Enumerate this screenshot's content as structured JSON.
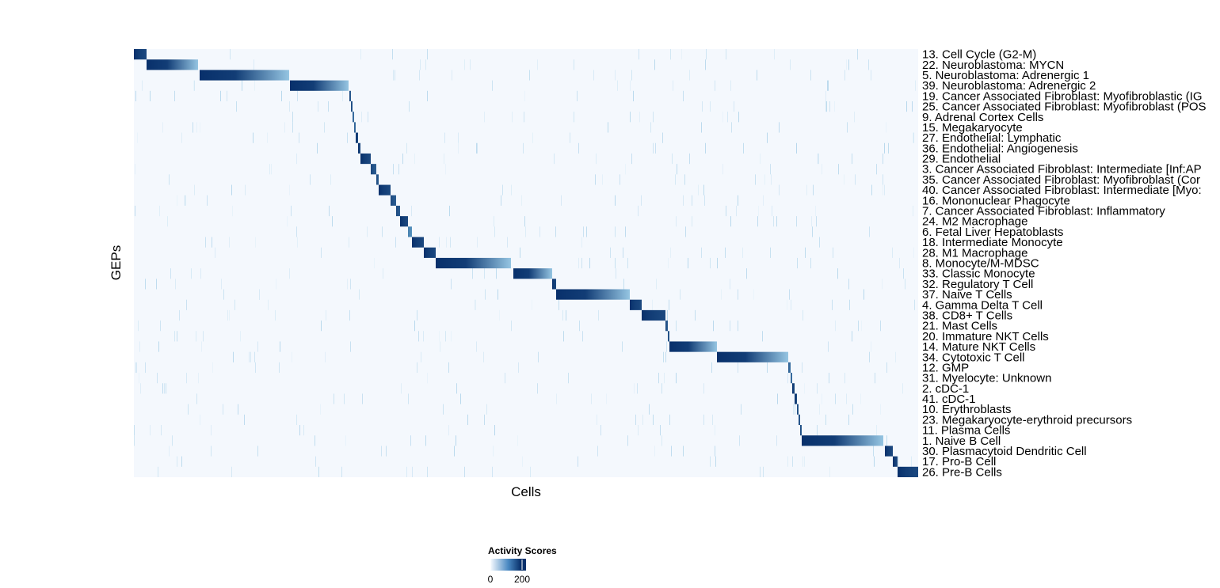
{
  "chart_data": {
    "type": "heatmap",
    "xlabel": "Cells",
    "ylabel": "GEPs",
    "n_cells": 990,
    "colorscale": {
      "low": "#f7fbff",
      "mid": "#6baed6",
      "high": "#08306b"
    },
    "legend": {
      "title": "Activity Scores",
      "ticks": [
        0,
        200
      ],
      "placement": "bottom-center",
      "range": [
        0,
        220
      ]
    },
    "rows": [
      {
        "label": "13. Cell Cycle (G2-M)",
        "block": [
          0,
          16
        ],
        "peak": 220
      },
      {
        "label": "22. Neuroblastoma: MYCN",
        "block": [
          16,
          81
        ],
        "peak": 220
      },
      {
        "label": "5. Neuroblastoma: Adrenergic 1",
        "block": [
          83,
          196
        ],
        "peak": 220
      },
      {
        "label": "39. Neuroblastoma: Adrenergic 2",
        "block": [
          197,
          271
        ],
        "peak": 220
      },
      {
        "label": "19. Cancer Associated Fibroblast: Myofibroblastic (IG",
        "block": [
          272,
          274
        ],
        "peak": 200
      },
      {
        "label": "25. Cancer Associated Fibroblast: Myofibroblast (POS",
        "block": [
          274,
          276
        ],
        "peak": 200
      },
      {
        "label": "9. Adrenal Cortex Cells",
        "block": [
          276,
          278
        ],
        "peak": 180
      },
      {
        "label": "15. Megakaryocyte",
        "block": [
          278,
          280
        ],
        "peak": 180
      },
      {
        "label": "27. Endothelial: Lymphatic",
        "block": [
          280,
          283
        ],
        "peak": 220
      },
      {
        "label": "36. Endothelial: Angiogenesis",
        "block": [
          283,
          286
        ],
        "peak": 220
      },
      {
        "label": "29. Endothelial",
        "block": [
          286,
          299
        ],
        "peak": 220
      },
      {
        "label": "3. Cancer Associated Fibroblast: Intermediate [Inf:AP",
        "block": [
          299,
          306
        ],
        "peak": 200
      },
      {
        "label": "35. Cancer Associated Fibroblast: Myofibroblast (Cor",
        "block": [
          306,
          309
        ],
        "peak": 200
      },
      {
        "label": "40. Cancer Associated Fibroblast: Intermediate [Myo:",
        "block": [
          309,
          324
        ],
        "peak": 220
      },
      {
        "label": "16. Mononuclear Phagocyte",
        "block": [
          324,
          331
        ],
        "peak": 200
      },
      {
        "label": "7. Cancer Associated Fibroblast: Inflammatory",
        "block": [
          331,
          336
        ],
        "peak": 200
      },
      {
        "label": "24. M2 Macrophage",
        "block": [
          336,
          346
        ],
        "peak": 220
      },
      {
        "label": "6. Fetal Liver Hepatoblasts",
        "block": [
          346,
          351
        ],
        "peak": 150
      },
      {
        "label": "18. Intermediate Monocyte",
        "block": [
          351,
          366
        ],
        "peak": 220
      },
      {
        "label": "28. M1 Macrophage",
        "block": [
          366,
          381
        ],
        "peak": 220
      },
      {
        "label": "8. Monocyte/M-MDSC",
        "block": [
          381,
          476
        ],
        "peak": 220
      },
      {
        "label": "33. Classic Monocyte",
        "block": [
          479,
          528
        ],
        "peak": 220
      },
      {
        "label": "32. Regulatory T Cell",
        "block": [
          528,
          533
        ],
        "peak": 220
      },
      {
        "label": "37. Naive T Cells",
        "block": [
          533,
          626
        ],
        "peak": 220
      },
      {
        "label": "4. Gamma Delta T Cell",
        "block": [
          626,
          641
        ],
        "peak": 220
      },
      {
        "label": "38. CD8+ T Cells",
        "block": [
          641,
          671
        ],
        "peak": 220
      },
      {
        "label": "21. Mast Cells",
        "block": [
          671,
          674
        ],
        "peak": 200
      },
      {
        "label": "20. Immature NKT Cells",
        "block": [
          674,
          676
        ],
        "peak": 200
      },
      {
        "label": "14. Mature NKT Cells",
        "block": [
          676,
          736
        ],
        "peak": 220
      },
      {
        "label": "34. Cytotoxic T Cell",
        "block": [
          736,
          826
        ],
        "peak": 220
      },
      {
        "label": "12. GMP",
        "block": [
          826,
          829
        ],
        "peak": 180
      },
      {
        "label": "31. Myelocyte: Unknown",
        "block": [
          829,
          831
        ],
        "peak": 180
      },
      {
        "label": "2. cDC-1",
        "block": [
          831,
          834
        ],
        "peak": 220
      },
      {
        "label": "41. cDC-1",
        "block": [
          834,
          837
        ],
        "peak": 220
      },
      {
        "label": "10. Erythroblasts",
        "block": [
          837,
          839
        ],
        "peak": 200
      },
      {
        "label": "23. Megakaryocyte-erythroid precursors",
        "block": [
          839,
          841
        ],
        "peak": 200
      },
      {
        "label": "11. Plasma Cells",
        "block": [
          841,
          843
        ],
        "peak": 200
      },
      {
        "label": "1. Naive B Cell",
        "block": [
          843,
          946
        ],
        "peak": 220
      },
      {
        "label": "30. Plasmacytoid Dendritic Cell",
        "block": [
          948,
          958
        ],
        "peak": 220
      },
      {
        "label": "17. Pro-B Cell",
        "block": [
          958,
          964
        ],
        "peak": 220
      },
      {
        "label": "26. Pre-B Cells",
        "block": [
          964,
          990
        ],
        "peak": 220
      }
    ]
  }
}
